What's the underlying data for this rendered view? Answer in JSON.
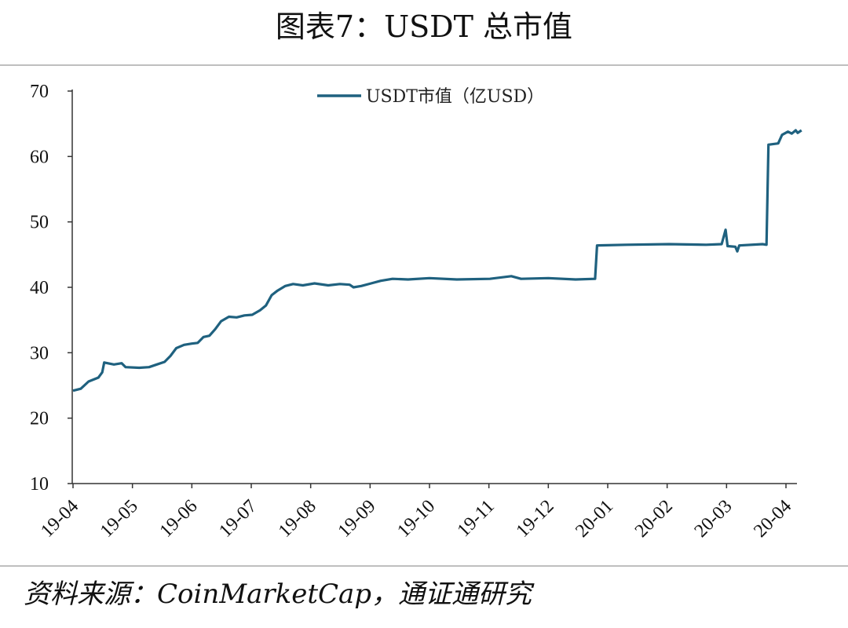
{
  "header": {
    "title": "图表7：USDT 总市值"
  },
  "footer": {
    "source": "资料来源：CoinMarketCap，通证通研究"
  },
  "colors": {
    "series": "#1f617f",
    "axis": "#333333",
    "rule": "#bfbfbf"
  },
  "chart_data": {
    "type": "line",
    "title": "",
    "xlabel": "",
    "ylabel": "",
    "ylim": [
      10,
      70
    ],
    "yticks": [
      10,
      20,
      30,
      40,
      50,
      60,
      70
    ],
    "xticks": [
      "19-04",
      "19-05",
      "19-06",
      "19-07",
      "19-08",
      "19-09",
      "19-10",
      "19-11",
      "19-12",
      "20-01",
      "20-02",
      "20-03",
      "20-04"
    ],
    "grid": false,
    "legend": "top-center",
    "series": [
      {
        "name": "USDT市值（亿USD）",
        "points": [
          [
            "2019-04-01",
            24.2
          ],
          [
            "2019-04-05",
            24.5
          ],
          [
            "2019-04-09",
            25.6
          ],
          [
            "2019-04-14",
            26.2
          ],
          [
            "2019-04-16",
            27.0
          ],
          [
            "2019-04-17",
            28.5
          ],
          [
            "2019-04-22",
            28.2
          ],
          [
            "2019-04-26",
            28.4
          ],
          [
            "2019-04-28",
            27.8
          ],
          [
            "2019-05-05",
            27.7
          ],
          [
            "2019-05-10",
            27.8
          ],
          [
            "2019-05-14",
            28.2
          ],
          [
            "2019-05-18",
            28.6
          ],
          [
            "2019-05-21",
            29.5
          ],
          [
            "2019-05-24",
            30.7
          ],
          [
            "2019-05-28",
            31.2
          ],
          [
            "2019-06-01",
            31.4
          ],
          [
            "2019-06-04",
            31.5
          ],
          [
            "2019-06-07",
            32.4
          ],
          [
            "2019-06-10",
            32.6
          ],
          [
            "2019-06-13",
            33.6
          ],
          [
            "2019-06-16",
            34.8
          ],
          [
            "2019-06-20",
            35.5
          ],
          [
            "2019-06-24",
            35.4
          ],
          [
            "2019-06-28",
            35.7
          ],
          [
            "2019-07-02",
            35.8
          ],
          [
            "2019-07-06",
            36.5
          ],
          [
            "2019-07-09",
            37.2
          ],
          [
            "2019-07-12",
            38.8
          ],
          [
            "2019-07-15",
            39.5
          ],
          [
            "2019-07-19",
            40.2
          ],
          [
            "2019-07-23",
            40.5
          ],
          [
            "2019-07-28",
            40.3
          ],
          [
            "2019-08-03",
            40.6
          ],
          [
            "2019-08-10",
            40.3
          ],
          [
            "2019-08-16",
            40.5
          ],
          [
            "2019-08-21",
            40.4
          ],
          [
            "2019-08-23",
            40.0
          ],
          [
            "2019-08-27",
            40.2
          ],
          [
            "2019-09-01",
            40.6
          ],
          [
            "2019-09-06",
            41.0
          ],
          [
            "2019-09-12",
            41.3
          ],
          [
            "2019-09-20",
            41.2
          ],
          [
            "2019-10-01",
            41.4
          ],
          [
            "2019-10-15",
            41.2
          ],
          [
            "2019-11-01",
            41.3
          ],
          [
            "2019-11-12",
            41.7
          ],
          [
            "2019-11-17",
            41.3
          ],
          [
            "2019-12-01",
            41.4
          ],
          [
            "2019-12-15",
            41.2
          ],
          [
            "2019-12-25",
            41.3
          ],
          [
            "2019-12-26",
            46.4
          ],
          [
            "2020-01-10",
            46.5
          ],
          [
            "2020-02-01",
            46.6
          ],
          [
            "2020-02-20",
            46.5
          ],
          [
            "2020-02-28",
            46.6
          ],
          [
            "2020-03-01",
            48.8
          ],
          [
            "2020-03-02",
            46.3
          ],
          [
            "2020-03-06",
            46.2
          ],
          [
            "2020-03-07",
            45.5
          ],
          [
            "2020-03-08",
            46.4
          ],
          [
            "2020-03-20",
            46.6
          ],
          [
            "2020-03-22",
            46.5
          ],
          [
            "2020-03-23",
            61.8
          ],
          [
            "2020-03-28",
            62.0
          ],
          [
            "2020-03-30",
            63.3
          ],
          [
            "2020-04-02",
            63.8
          ],
          [
            "2020-04-04",
            63.5
          ],
          [
            "2020-04-06",
            64.0
          ],
          [
            "2020-04-07",
            63.6
          ],
          [
            "2020-04-09",
            64.0
          ]
        ]
      }
    ]
  }
}
